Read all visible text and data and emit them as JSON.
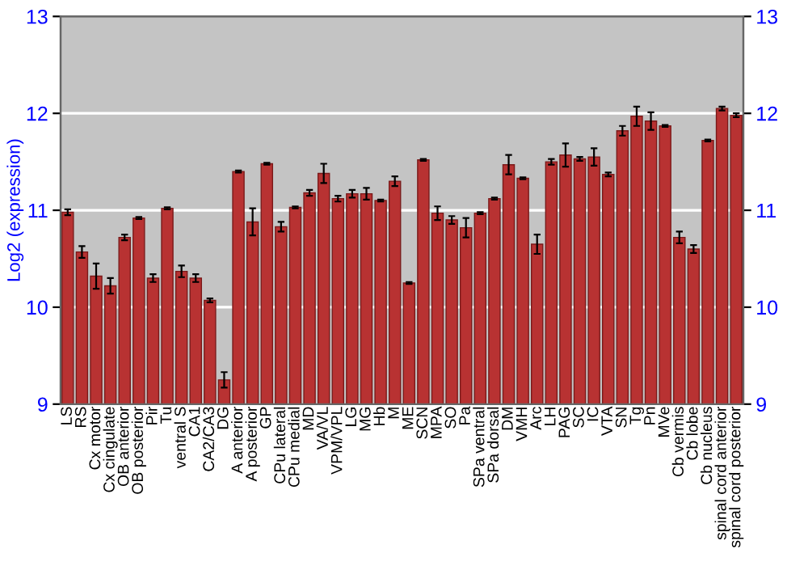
{
  "chart_data": {
    "type": "bar",
    "ylabel": "Log2 (expression)",
    "categories": [
      "LS",
      "RS",
      "Cx motor",
      "Cx cingulate",
      "OB anterior",
      "OB posterior",
      "Pir",
      "Tu",
      "ventral S",
      "CA1",
      "CA2/CA3",
      "DG",
      "A anterior",
      "A posterior",
      "GP",
      "CPu lateral",
      "CPu medial",
      "MD",
      "VA/VL",
      "VPM/VPL",
      "LG",
      "MG",
      "Hb",
      "M",
      "ME",
      "SCN",
      "MPA",
      "SO",
      "Pa",
      "SPa ventral",
      "SPa dorsal",
      "DM",
      "VMH",
      "Arc",
      "LH",
      "PAG",
      "SC",
      "IC",
      "VTA",
      "SN",
      "Tg",
      "Pn",
      "MVe",
      "Cb vermis",
      "Cb lobe",
      "Cb nucleus",
      "spinal cord anterior",
      "spinal cord posterior"
    ],
    "values": [
      10.98,
      10.57,
      10.32,
      10.22,
      10.72,
      10.92,
      10.3,
      11.02,
      10.37,
      10.3,
      10.07,
      9.25,
      11.4,
      10.88,
      11.48,
      10.83,
      11.03,
      11.18,
      11.38,
      11.12,
      11.17,
      11.17,
      11.1,
      11.3,
      10.25,
      11.52,
      10.97,
      10.9,
      10.82,
      10.97,
      11.12,
      11.47,
      11.33,
      10.65,
      11.5,
      11.57,
      11.53,
      11.55,
      11.37,
      11.82,
      11.97,
      11.92,
      11.87,
      10.72,
      10.6,
      11.72,
      12.05,
      11.98
    ],
    "errors": [
      0.03,
      0.06,
      0.13,
      0.08,
      0.03,
      0.01,
      0.04,
      0.01,
      0.06,
      0.04,
      0.02,
      0.08,
      0.01,
      0.14,
      0.01,
      0.05,
      0.01,
      0.03,
      0.1,
      0.03,
      0.04,
      0.06,
      0.01,
      0.05,
      0.01,
      0.01,
      0.07,
      0.04,
      0.1,
      0.01,
      0.01,
      0.1,
      0.01,
      0.1,
      0.03,
      0.12,
      0.02,
      0.09,
      0.02,
      0.05,
      0.1,
      0.09,
      0.01,
      0.06,
      0.04,
      0.01,
      0.02,
      0.02
    ],
    "color": "#b83232",
    "ylim": [
      9,
      13
    ],
    "yticks": [
      9,
      10,
      11,
      12,
      13
    ],
    "y2lim": [
      9,
      13
    ],
    "y2ticks": [
      9,
      10,
      11,
      12,
      13
    ],
    "grid": "y"
  }
}
